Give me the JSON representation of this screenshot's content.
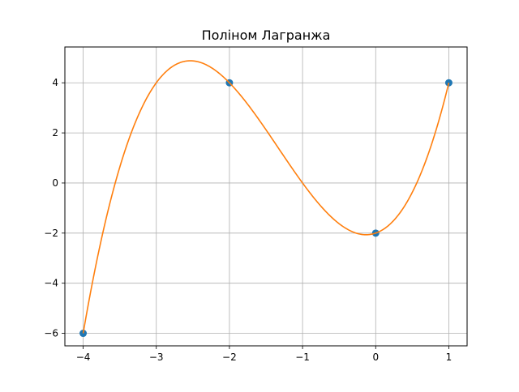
{
  "chart_data": {
    "type": "line",
    "title": "Поліном Лагранжа",
    "xlabel": "",
    "ylabel": "",
    "xlim": [
      -4.25,
      1.25
    ],
    "ylim": [
      -6.5,
      5.43
    ],
    "grid": true,
    "x_ticks": [
      -4,
      -3,
      -2,
      -1,
      0,
      1
    ],
    "x_tick_labels": [
      "−4",
      "−3",
      "−2",
      "−1",
      "0",
      "1"
    ],
    "y_ticks": [
      -6,
      -4,
      -2,
      0,
      2,
      4
    ],
    "y_tick_labels": [
      "−6",
      "−4",
      "−2",
      "0",
      "2",
      "4"
    ],
    "series": [
      {
        "kind": "scatter",
        "color": "#1f77b4",
        "x": [
          -4,
          -2,
          0,
          1
        ],
        "y": [
          -6,
          4,
          -2,
          4
        ]
      },
      {
        "kind": "line",
        "color": "#ff7f0e",
        "function": "lagrange_interpolation_of_scatter_points",
        "x_range": [
          -4,
          1
        ]
      }
    ]
  }
}
